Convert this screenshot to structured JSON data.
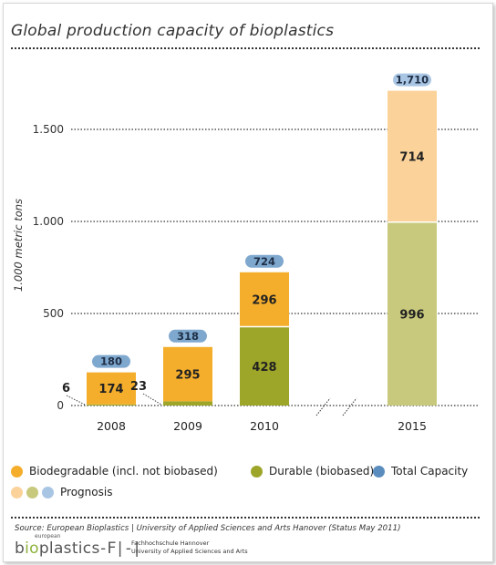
{
  "title": "Global production capacity of bioplastics",
  "colors": {
    "biodegradable": "#f4ae2c",
    "durable": "#9ea62a",
    "total_pill": "#7fa8cf",
    "prognosis_biodegradable": "#fbd29a",
    "prognosis_durable": "#c8c97c",
    "prognosis_total": "#a9c5e4",
    "total_dot": "#5a8dbd"
  },
  "chart_data": {
    "type": "bar",
    "stacked": true,
    "categories": [
      "2008",
      "2009",
      "2010",
      "2015"
    ],
    "series": [
      {
        "name": "Durable (biobased)",
        "values": [
          6,
          23,
          428,
          996
        ]
      },
      {
        "name": "Biodegradable (incl. not biobased)",
        "values": [
          174,
          295,
          296,
          714
        ]
      }
    ],
    "totals": [
      180,
      318,
      724,
      1710
    ],
    "total_labels": [
      "180",
      "318",
      "724",
      "1,710"
    ],
    "segment_labels": {
      "durable": [
        "6",
        "23",
        "428",
        "996"
      ],
      "biodegradable": [
        "174",
        "295",
        "296",
        "714"
      ]
    },
    "prognosis_categories": [
      "2015"
    ],
    "ylabel": "1.000 metric tons",
    "yticks": [
      0,
      500,
      1000,
      1500
    ],
    "ytick_labels": [
      "0",
      "500",
      "1.000",
      "1.500"
    ],
    "ylim": [
      0,
      1750
    ],
    "grid": true,
    "axis_break": true
  },
  "legend": {
    "biodegradable": "Biodegradable (incl. not biobased)",
    "durable": "Durable (biobased)",
    "total": "Total Capacity",
    "prognosis": "Prognosis"
  },
  "source": "Source: European Bioplastics | University of Applied Sciences and Arts Hanover (Status May 2011)",
  "logos": {
    "eb_small": "european",
    "eb_main_prefix": "b",
    "eb_main_accent": "io",
    "eb_main_suffix": "plastics",
    "fh_mark": "-F|-|",
    "fh_line1": "Fachhochschule Hannover",
    "fh_line2": "University of Applied Sciences and Arts"
  }
}
